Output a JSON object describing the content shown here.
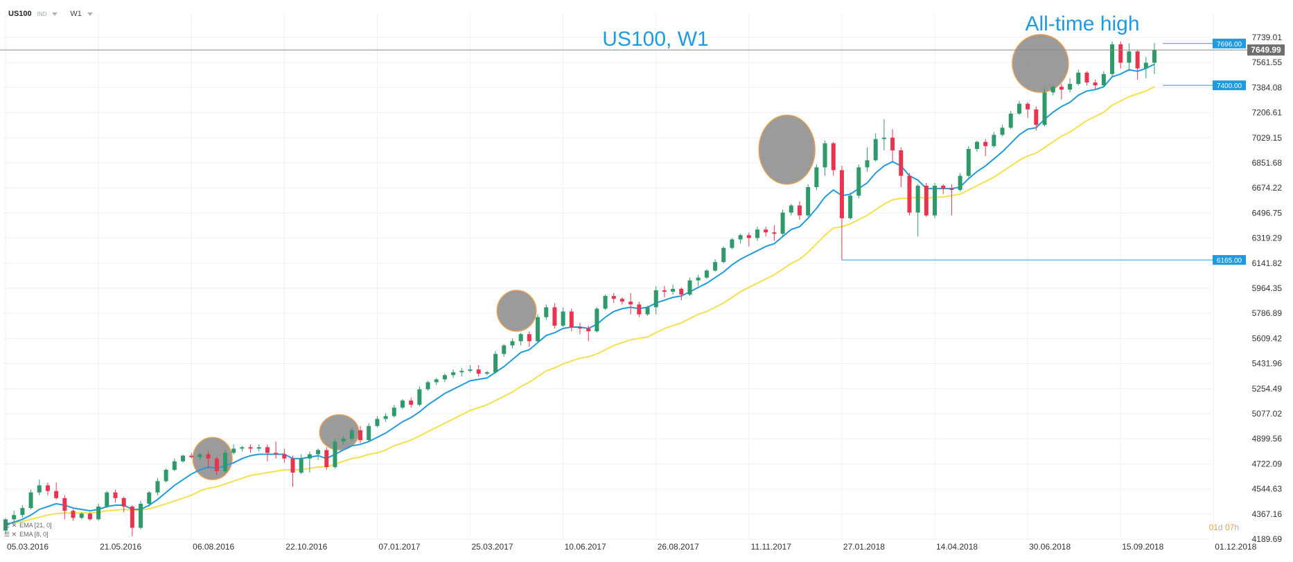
{
  "toolbar": {
    "symbol": "US100",
    "type_tag": "IND",
    "timeframe": "W1"
  },
  "countdown": {
    "days": "01",
    "d": "d",
    "hours": "07",
    "h": "h"
  },
  "indicators": [
    {
      "label": "EMA  [21, 0]",
      "color": "#f5e04a"
    },
    {
      "label": "EMA  [8, 0]",
      "color": "#1e9be0"
    }
  ],
  "colors": {
    "bull": "#2e9a6b",
    "bear": "#e8344e",
    "ema_fast": "#1e9be0",
    "ema_slow": "#f5e04a",
    "level_line": "#1e9be0",
    "price_tag": "#6d6d6d",
    "title": "#1e9be0",
    "highlight_fill": "#8a8a8a",
    "highlight_stroke": "#e8a050"
  },
  "chart_data": {
    "type": "candlestick",
    "title": "US100, W1",
    "annotation": "All-time high",
    "y_ticks": [
      4189.69,
      4367.16,
      4544.63,
      4722.09,
      4899.56,
      5077.02,
      5254.49,
      5431.96,
      5609.42,
      5786.89,
      5964.35,
      6141.82,
      6319.29,
      6496.75,
      6674.22,
      6851.68,
      7029.15,
      7206.61,
      7384.08,
      7561.55,
      7739.01
    ],
    "x_ticks": [
      "05.03.2016",
      "21.05.2016",
      "06.08.2016",
      "22.10.2016",
      "07.01.2017",
      "25.03.2017",
      "10.06.2017",
      "26.08.2017",
      "11.11.2017",
      "27.01.2018",
      "14.04.2018",
      "30.06.2018",
      "15.09.2018",
      "01.12.2018"
    ],
    "ylim": [
      4189.69,
      7739.01
    ],
    "current_price": "7649.99",
    "levels": [
      {
        "label": "7696.00",
        "value": 7696.0,
        "from_week": 137
      },
      {
        "label": "7400.00",
        "value": 7400.0,
        "from_week": 137
      },
      {
        "label": "6165.00",
        "value": 6165.0,
        "from_week": 99
      }
    ],
    "highlights": [
      {
        "from_week": 23,
        "to_week": 26,
        "low": 4640,
        "high": 4880
      },
      {
        "from_week": 38,
        "to_week": 41,
        "low": 4850,
        "high": 5040
      },
      {
        "from_week": 59,
        "to_week": 62,
        "low": 5690,
        "high": 5920
      },
      {
        "from_week": 90,
        "to_week": 95,
        "low": 6730,
        "high": 7160
      },
      {
        "from_week": 120,
        "to_week": 125,
        "low": 7380,
        "high": 7730
      }
    ],
    "candles": [
      [
        4250,
        4330,
        4230,
        4340
      ],
      [
        4330,
        4360,
        4300,
        4390
      ],
      [
        4360,
        4410,
        4340,
        4430
      ],
      [
        4410,
        4520,
        4400,
        4540
      ],
      [
        4520,
        4570,
        4500,
        4610
      ],
      [
        4570,
        4530,
        4500,
        4590
      ],
      [
        4530,
        4480,
        4470,
        4590
      ],
      [
        4480,
        4390,
        4330,
        4500
      ],
      [
        4390,
        4340,
        4320,
        4400
      ],
      [
        4340,
        4370,
        4330,
        4380
      ],
      [
        4370,
        4330,
        4320,
        4380
      ],
      [
        4330,
        4420,
        4320,
        4440
      ],
      [
        4420,
        4520,
        4410,
        4530
      ],
      [
        4520,
        4480,
        4450,
        4540
      ],
      [
        4480,
        4420,
        4380,
        4490
      ],
      [
        4420,
        4270,
        4210,
        4430
      ],
      [
        4270,
        4440,
        4260,
        4460
      ],
      [
        4440,
        4520,
        4420,
        4530
      ],
      [
        4520,
        4600,
        4500,
        4620
      ],
      [
        4600,
        4680,
        4590,
        4690
      ],
      [
        4680,
        4740,
        4670,
        4760
      ],
      [
        4740,
        4780,
        4730,
        4790
      ],
      [
        4780,
        4770,
        4760,
        4800
      ],
      [
        4770,
        4790,
        4750,
        4800
      ],
      [
        4790,
        4760,
        4690,
        4810
      ],
      [
        4760,
        4670,
        4640,
        4770
      ],
      [
        4670,
        4800,
        4660,
        4820
      ],
      [
        4800,
        4830,
        4790,
        4860
      ],
      [
        4830,
        4840,
        4810,
        4850
      ],
      [
        4840,
        4830,
        4800,
        4860
      ],
      [
        4830,
        4840,
        4810,
        4860
      ],
      [
        4840,
        4800,
        4740,
        4860
      ],
      [
        4800,
        4790,
        4760,
        4880
      ],
      [
        4790,
        4760,
        4730,
        4830
      ],
      [
        4760,
        4660,
        4560,
        4780
      ],
      [
        4660,
        4760,
        4650,
        4790
      ],
      [
        4760,
        4790,
        4660,
        4810
      ],
      [
        4790,
        4820,
        4750,
        4830
      ],
      [
        4820,
        4700,
        4680,
        4840
      ],
      [
        4700,
        4880,
        4690,
        4900
      ],
      [
        4880,
        4900,
        4860,
        4920
      ],
      [
        4900,
        4960,
        4880,
        4980
      ],
      [
        4960,
        4890,
        4870,
        4990
      ],
      [
        4890,
        4990,
        4880,
        5010
      ],
      [
        4990,
        5040,
        4980,
        5060
      ],
      [
        5040,
        5060,
        5020,
        5080
      ],
      [
        5060,
        5120,
        5050,
        5140
      ],
      [
        5120,
        5170,
        5110,
        5180
      ],
      [
        5170,
        5140,
        5120,
        5190
      ],
      [
        5140,
        5250,
        5130,
        5270
      ],
      [
        5250,
        5300,
        5240,
        5310
      ],
      [
        5300,
        5320,
        5280,
        5330
      ],
      [
        5320,
        5350,
        5300,
        5360
      ],
      [
        5350,
        5370,
        5330,
        5390
      ],
      [
        5370,
        5380,
        5340,
        5400
      ],
      [
        5380,
        5390,
        5370,
        5420
      ],
      [
        5390,
        5360,
        5340,
        5420
      ],
      [
        5360,
        5370,
        5350,
        5380
      ],
      [
        5370,
        5500,
        5360,
        5520
      ],
      [
        5500,
        5560,
        5480,
        5570
      ],
      [
        5560,
        5590,
        5540,
        5610
      ],
      [
        5590,
        5640,
        5560,
        5650
      ],
      [
        5640,
        5590,
        5550,
        5660
      ],
      [
        5590,
        5760,
        5580,
        5780
      ],
      [
        5760,
        5830,
        5740,
        5850
      ],
      [
        5830,
        5700,
        5680,
        5860
      ],
      [
        5700,
        5800,
        5690,
        5830
      ],
      [
        5800,
        5690,
        5660,
        5820
      ],
      [
        5690,
        5680,
        5640,
        5720
      ],
      [
        5680,
        5660,
        5590,
        5700
      ],
      [
        5660,
        5820,
        5650,
        5830
      ],
      [
        5820,
        5910,
        5810,
        5920
      ],
      [
        5910,
        5890,
        5860,
        5930
      ],
      [
        5890,
        5870,
        5850,
        5900
      ],
      [
        5870,
        5850,
        5780,
        5930
      ],
      [
        5850,
        5780,
        5760,
        5870
      ],
      [
        5780,
        5830,
        5770,
        5840
      ],
      [
        5830,
        5950,
        5780,
        5980
      ],
      [
        5950,
        5940,
        5900,
        5980
      ],
      [
        5940,
        5960,
        5920,
        5990
      ],
      [
        5960,
        5920,
        5880,
        5970
      ],
      [
        5920,
        6020,
        5910,
        6040
      ],
      [
        6020,
        6040,
        5980,
        6060
      ],
      [
        6040,
        6090,
        6030,
        6100
      ],
      [
        6090,
        6150,
        6080,
        6170
      ],
      [
        6150,
        6250,
        6140,
        6260
      ],
      [
        6250,
        6310,
        6240,
        6320
      ],
      [
        6310,
        6340,
        6280,
        6350
      ],
      [
        6340,
        6320,
        6260,
        6360
      ],
      [
        6320,
        6380,
        6300,
        6400
      ],
      [
        6380,
        6360,
        6330,
        6400
      ],
      [
        6360,
        6350,
        6300,
        6410
      ],
      [
        6350,
        6500,
        6330,
        6520
      ],
      [
        6500,
        6550,
        6480,
        6560
      ],
      [
        6550,
        6480,
        6450,
        6580
      ],
      [
        6480,
        6680,
        6470,
        6700
      ],
      [
        6680,
        6820,
        6660,
        6840
      ],
      [
        6820,
        6990,
        6760,
        7010
      ],
      [
        6990,
        6800,
        6760,
        7000
      ],
      [
        6800,
        6460,
        6165,
        6830
      ],
      [
        6460,
        6620,
        6450,
        6640
      ],
      [
        6620,
        6820,
        6600,
        6840
      ],
      [
        6820,
        6870,
        6790,
        6960
      ],
      [
        6870,
        7020,
        6860,
        7060
      ],
      [
        7020,
        7030,
        6940,
        7160
      ],
      [
        7030,
        6940,
        6860,
        7090
      ],
      [
        6940,
        6760,
        6680,
        6960
      ],
      [
        6760,
        6500,
        6480,
        6780
      ],
      [
        6500,
        6690,
        6330,
        6700
      ],
      [
        6690,
        6480,
        6470,
        6710
      ],
      [
        6480,
        6690,
        6460,
        6710
      ],
      [
        6690,
        6670,
        6630,
        6700
      ],
      [
        6670,
        6660,
        6480,
        6700
      ],
      [
        6660,
        6760,
        6650,
        6780
      ],
      [
        6760,
        6950,
        6750,
        6970
      ],
      [
        6950,
        7000,
        6930,
        7010
      ],
      [
        7000,
        6970,
        6900,
        7020
      ],
      [
        6970,
        7050,
        6960,
        7070
      ],
      [
        7050,
        7100,
        7040,
        7120
      ],
      [
        7100,
        7200,
        7090,
        7220
      ],
      [
        7200,
        7270,
        7190,
        7290
      ],
      [
        7270,
        7230,
        7170,
        7280
      ],
      [
        7230,
        7120,
        7080,
        7250
      ],
      [
        7120,
        7350,
        7110,
        7380
      ],
      [
        7350,
        7390,
        7330,
        7400
      ],
      [
        7390,
        7370,
        7300,
        7410
      ],
      [
        7370,
        7410,
        7350,
        7450
      ],
      [
        7410,
        7490,
        7400,
        7510
      ],
      [
        7490,
        7420,
        7400,
        7500
      ],
      [
        7420,
        7400,
        7370,
        7440
      ],
      [
        7400,
        7480,
        7390,
        7500
      ],
      [
        7480,
        7690,
        7460,
        7710
      ],
      [
        7690,
        7560,
        7520,
        7710
      ],
      [
        7560,
        7640,
        7500,
        7696
      ],
      [
        7640,
        7520,
        7440,
        7650
      ],
      [
        7520,
        7560,
        7450,
        7600
      ],
      [
        7560,
        7650,
        7480,
        7700
      ]
    ],
    "ema8": [
      4290,
      4310,
      4330,
      4360,
      4400,
      4420,
      4440,
      4430,
      4410,
      4400,
      4390,
      4400,
      4420,
      4430,
      4430,
      4400,
      4400,
      4430,
      4470,
      4520,
      4570,
      4610,
      4650,
      4680,
      4700,
      4690,
      4710,
      4730,
      4760,
      4780,
      4790,
      4790,
      4790,
      4790,
      4760,
      4760,
      4770,
      4780,
      4760,
      4790,
      4820,
      4850,
      4860,
      4880,
      4910,
      4940,
      4980,
      5020,
      5050,
      5090,
      5140,
      5180,
      5220,
      5250,
      5280,
      5310,
      5320,
      5330,
      5370,
      5410,
      5460,
      5510,
      5530,
      5580,
      5630,
      5650,
      5680,
      5690,
      5690,
      5680,
      5710,
      5760,
      5800,
      5820,
      5830,
      5820,
      5830,
      5860,
      5880,
      5900,
      5910,
      5940,
      5970,
      6000,
      6040,
      6080,
      6130,
      6170,
      6200,
      6230,
      6260,
      6280,
      6330,
      6380,
      6400,
      6460,
      6530,
      6610,
      6660,
      6620,
      6630,
      6670,
      6710,
      6780,
      6830,
      6860,
      6830,
      6760,
      6730,
      6670,
      6670,
      6670,
      6670,
      6680,
      6740,
      6790,
      6830,
      6880,
      6930,
      6990,
      7050,
      7090,
      7100,
      7160,
      7210,
      7250,
      7280,
      7330,
      7360,
      7370,
      7390,
      7460,
      7480,
      7510,
      7500,
      7520,
      7550
    ],
    "ema21": [
      4300,
      4305,
      4315,
      4330,
      4345,
      4360,
      4370,
      4375,
      4375,
      4375,
      4375,
      4380,
      4390,
      4395,
      4400,
      4395,
      4395,
      4405,
      4420,
      4440,
      4460,
      4480,
      4500,
      4530,
      4550,
      4560,
      4580,
      4600,
      4620,
      4640,
      4650,
      4660,
      4670,
      4680,
      4680,
      4680,
      4690,
      4700,
      4700,
      4720,
      4740,
      4760,
      4770,
      4790,
      4800,
      4820,
      4850,
      4870,
      4890,
      4920,
      4950,
      4980,
      5010,
      5040,
      5070,
      5100,
      5120,
      5140,
      5170,
      5200,
      5230,
      5270,
      5300,
      5340,
      5380,
      5400,
      5430,
      5450,
      5470,
      5480,
      5500,
      5530,
      5560,
      5580,
      5600,
      5610,
      5620,
      5650,
      5680,
      5700,
      5720,
      5750,
      5780,
      5800,
      5830,
      5860,
      5900,
      5940,
      5970,
      6000,
      6030,
      6060,
      6100,
      6140,
      6170,
      6220,
      6280,
      6340,
      6390,
      6400,
      6420,
      6450,
      6480,
      6520,
      6560,
      6590,
      6600,
      6600,
      6610,
      6600,
      6610,
      6610,
      6620,
      6630,
      6660,
      6690,
      6720,
      6750,
      6790,
      6830,
      6870,
      6900,
      6920,
      6960,
      7000,
      7040,
      7070,
      7110,
      7150,
      7180,
      7210,
      7260,
      7290,
      7320,
      7340,
      7360,
      7390
    ]
  }
}
